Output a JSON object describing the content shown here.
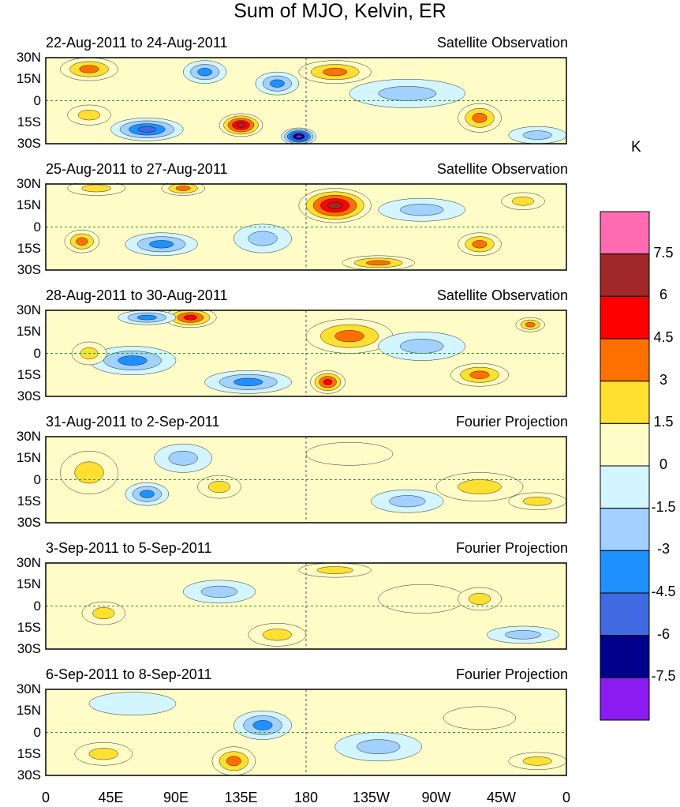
{
  "chart_data": {
    "type": "heatmap",
    "title": "Sum of MJO, Kelvin, ER",
    "colorbar": {
      "unit": "K",
      "levels": [
        "7.5",
        "6",
        "4.5",
        "3",
        "1.5",
        "0",
        "-1.5",
        "-3",
        "-4.5",
        "-6",
        "-7.5"
      ],
      "colors": [
        "#FF6AB0",
        "#A02828",
        "#FF0000",
        "#FF7000",
        "#FFDF30",
        "#FFFCC8",
        "#D2F5FF",
        "#A2D0FF",
        "#1E90FF",
        "#4169E1",
        "#00008C",
        "#8A1CF0"
      ]
    },
    "xticks": [
      "0",
      "45E",
      "90E",
      "135E",
      "180",
      "135W",
      "90W",
      "45W",
      "0"
    ],
    "yticks": [
      "30N",
      "15N",
      "0",
      "15S",
      "30S"
    ],
    "panels": [
      {
        "date": "22-Aug-2011 to 24-Aug-2011",
        "source": "Satellite Observation"
      },
      {
        "date": "25-Aug-2011 to 27-Aug-2011",
        "source": "Satellite Observation"
      },
      {
        "date": "28-Aug-2011 to 30-Aug-2011",
        "source": "Satellite Observation"
      },
      {
        "date": "31-Aug-2011 to 2-Sep-2011",
        "source": "Fourier Projection"
      },
      {
        "date": "3-Sep-2011 to 5-Sep-2011",
        "source": "Fourier Projection"
      },
      {
        "date": "6-Sep-2011 to 8-Sep-2011",
        "source": "Fourier Projection"
      }
    ]
  }
}
